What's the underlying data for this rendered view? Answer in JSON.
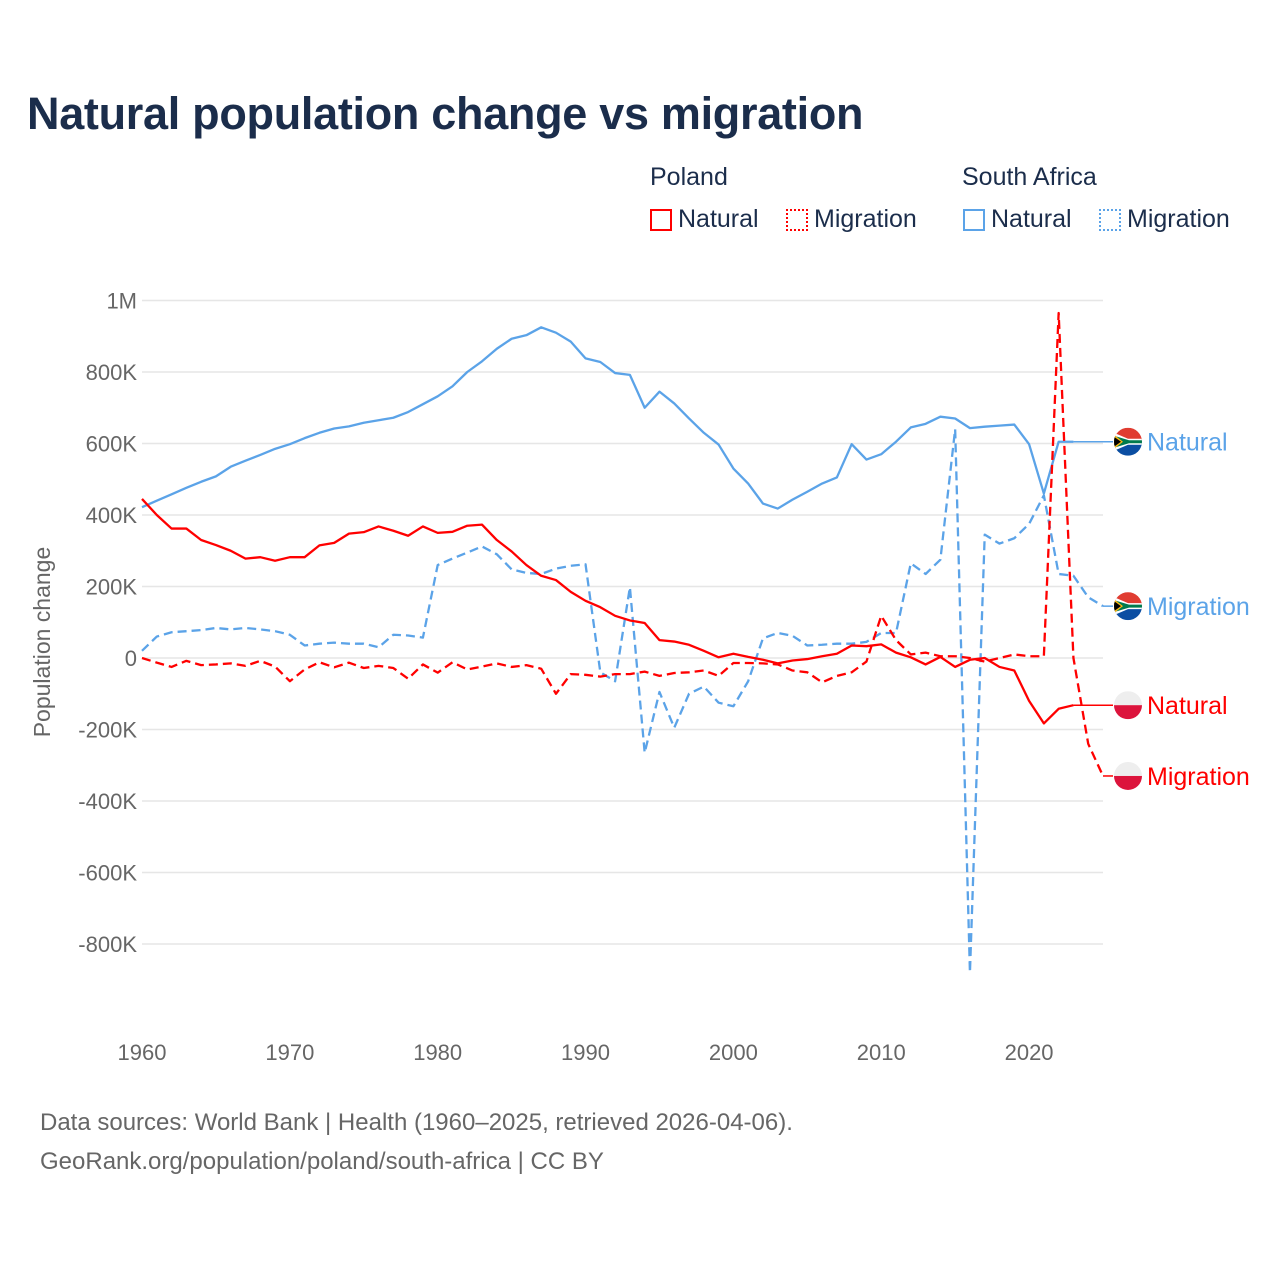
{
  "title": "Natural population change vs migration",
  "legend": {
    "groups": [
      {
        "name": "Poland",
        "items": [
          {
            "label": "Natural",
            "style": "solid",
            "color": "#ff0000"
          },
          {
            "label": "Migration",
            "style": "dotted",
            "color": "#ff0000"
          }
        ]
      },
      {
        "name": "South Africa",
        "items": [
          {
            "label": "Natural",
            "style": "solid",
            "color": "#5ba3e8"
          },
          {
            "label": "Migration",
            "style": "dotted",
            "color": "#5ba3e8"
          }
        ]
      }
    ]
  },
  "footer": {
    "line1": "Data sources: World Bank | Health (1960–2025, retrieved 2026-04-06).",
    "line2": "GeoRank.org/population/poland/south-africa | CC BY"
  },
  "chart_data": {
    "type": "line",
    "title": "Natural population change vs migration",
    "xlabel": "",
    "ylabel": "Population change",
    "xlim": [
      1960,
      2025
    ],
    "ylim": [
      -1000000,
      1000000
    ],
    "x_ticks": [
      "1960",
      "1970",
      "1980",
      "1990",
      "2000",
      "2010",
      "2020"
    ],
    "y_ticks": [
      {
        "value": 1000000,
        "label": "1M"
      },
      {
        "value": 800000,
        "label": "800K"
      },
      {
        "value": 600000,
        "label": "600K"
      },
      {
        "value": 400000,
        "label": "400K"
      },
      {
        "value": 200000,
        "label": "200K"
      },
      {
        "value": 0,
        "label": "0"
      },
      {
        "value": -200000,
        "label": "-200K"
      },
      {
        "value": -400000,
        "label": "-400K"
      },
      {
        "value": -600000,
        "label": "-600K"
      },
      {
        "value": -800000,
        "label": "-800K"
      }
    ],
    "grid": true,
    "x_start": 1960,
    "unit": "thousands",
    "series": [
      {
        "name": "South Africa Natural",
        "label": "Natural",
        "country": "South Africa",
        "dashed": false,
        "color": "#5ba3e8",
        "values": [
          422,
          440,
          458,
          476,
          493,
          508,
          535,
          552,
          568,
          585,
          598,
          615,
          630,
          642,
          648,
          658,
          665,
          672,
          688,
          710,
          732,
          760,
          800,
          830,
          865,
          893,
          903,
          925,
          910,
          885,
          838,
          828,
          797,
          792,
          700,
          745,
          712,
          670,
          630,
          597,
          530,
          488,
          432,
          418,
          443,
          465,
          488,
          505,
          598,
          555,
          570,
          605,
          645,
          655,
          675,
          670,
          643,
          647,
          650,
          653,
          598,
          460,
          605,
          605
        ]
      },
      {
        "name": "South Africa Migration",
        "label": "Migration",
        "country": "South Africa",
        "dashed": true,
        "color": "#5ba3e8",
        "values": [
          20,
          60,
          72,
          75,
          78,
          84,
          80,
          84,
          80,
          75,
          65,
          35,
          40,
          43,
          40,
          40,
          30,
          65,
          63,
          57,
          260,
          278,
          295,
          312,
          290,
          248,
          238,
          235,
          250,
          258,
          262,
          -40,
          -65,
          198,
          -265,
          -95,
          -195,
          -100,
          -80,
          -125,
          -135,
          -65,
          55,
          70,
          62,
          35,
          37,
          40,
          40,
          45,
          70,
          70,
          265,
          235,
          275,
          640,
          -880,
          345,
          320,
          335,
          375,
          455,
          235,
          230,
          170,
          145
        ]
      },
      {
        "name": "Poland Natural",
        "label": "Natural",
        "country": "Poland",
        "dashed": false,
        "color": "#ff0000",
        "values": [
          445,
          400,
          362,
          362,
          330,
          316,
          300,
          278,
          282,
          272,
          282,
          282,
          315,
          322,
          348,
          352,
          368,
          356,
          342,
          368,
          350,
          353,
          370,
          373,
          330,
          298,
          260,
          230,
          218,
          185,
          160,
          142,
          118,
          105,
          98,
          50,
          46,
          37,
          20,
          2,
          12,
          3,
          -5,
          -15,
          -7,
          -3,
          5,
          12,
          35,
          33,
          38,
          15,
          2,
          -18,
          3,
          -25,
          -5,
          0,
          -25,
          -35,
          -120,
          -183,
          -142,
          -132
        ]
      },
      {
        "name": "Poland Migration",
        "label": "Migration",
        "country": "Poland",
        "dashed": true,
        "color": "#ff0000",
        "values": [
          0,
          -13,
          -25,
          -8,
          -20,
          -18,
          -15,
          -22,
          -8,
          -24,
          -65,
          -32,
          -12,
          -26,
          -13,
          -28,
          -22,
          -28,
          -58,
          -18,
          -41,
          -12,
          -32,
          -24,
          -15,
          -25,
          -20,
          -30,
          -100,
          -45,
          -47,
          -52,
          -45,
          -45,
          -38,
          -50,
          -42,
          -40,
          -35,
          -50,
          -14,
          -14,
          -15,
          -18,
          -35,
          -40,
          -68,
          -50,
          -40,
          -10,
          118,
          50,
          10,
          15,
          5,
          5,
          0,
          -10,
          0,
          10,
          5,
          5,
          965,
          0,
          -240,
          -330
        ]
      }
    ]
  }
}
